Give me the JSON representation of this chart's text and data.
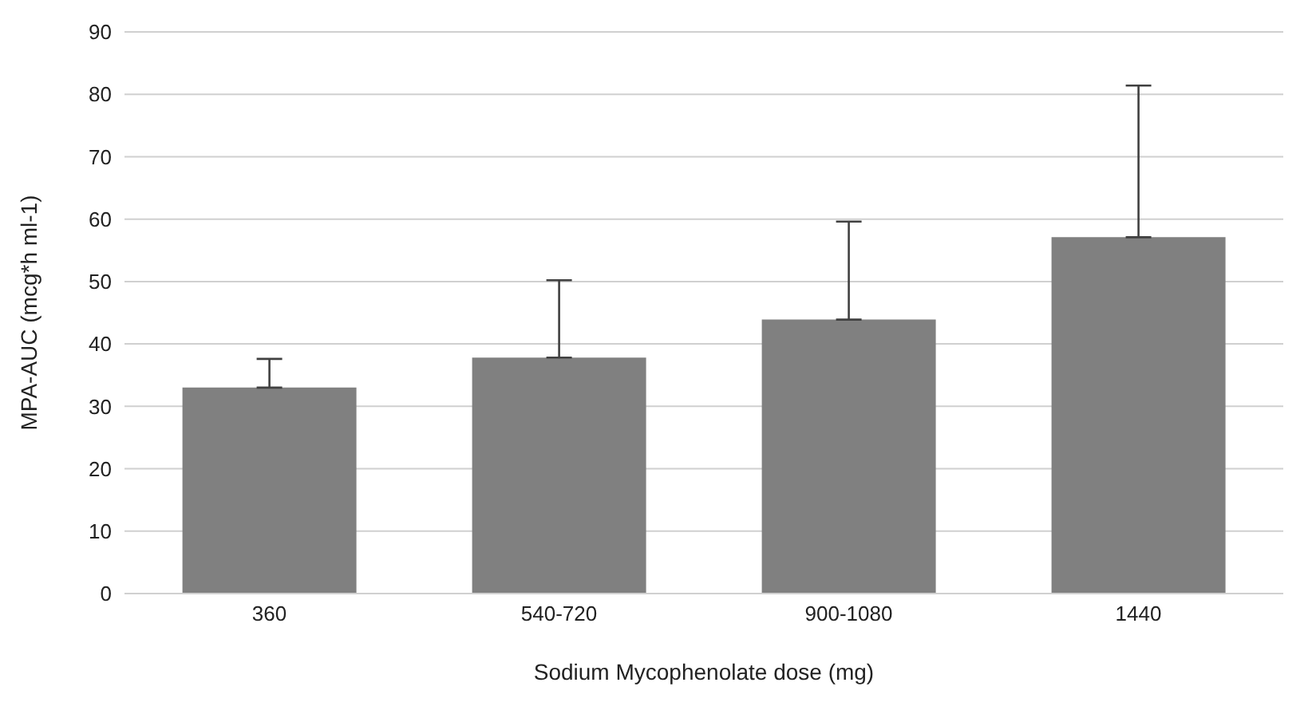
{
  "chart_data": {
    "type": "bar",
    "xlabel": "Sodium Mycophenolate dose (mg)",
    "ylabel": "MPA-AUC (mcg*h ml-1)",
    "categories": [
      "360",
      "540-720",
      "900-1080",
      "1440"
    ],
    "values": [
      33.0,
      37.8,
      43.9,
      57.1
    ],
    "errors": [
      [
        33.0,
        37.6
      ],
      [
        37.8,
        50.2
      ],
      [
        43.9,
        59.6
      ],
      [
        57.1,
        81.4
      ]
    ],
    "color": "#808080",
    "ylim": [
      0,
      90
    ],
    "yticks": [
      0,
      10,
      20,
      30,
      40,
      50,
      60,
      70,
      80,
      90
    ],
    "grid": "y"
  }
}
